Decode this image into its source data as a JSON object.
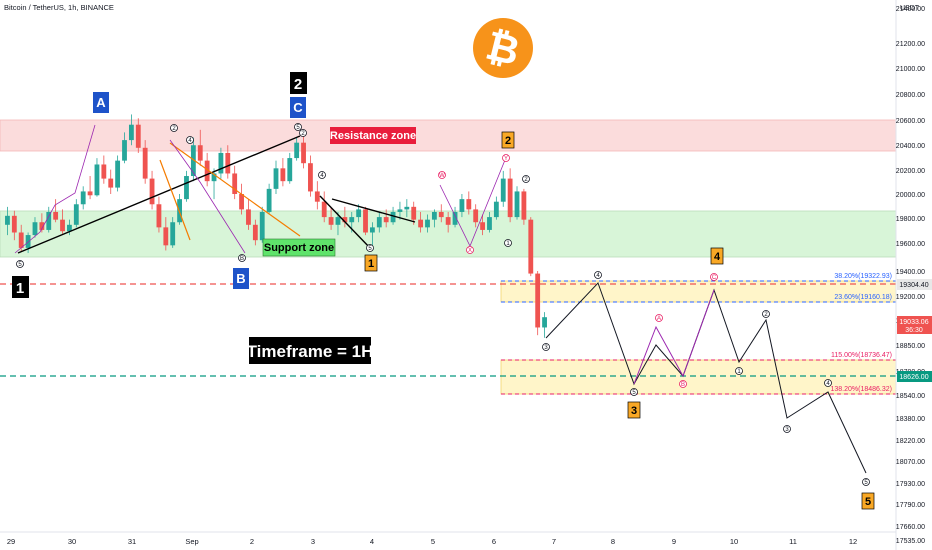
{
  "header": {
    "symbol": "Bitcoin / TetherUS, 1h, BINANCE"
  },
  "axis": {
    "unit": "USDT"
  },
  "colors": {
    "up": "#26a69a",
    "down": "#ef5350",
    "resistance_fill": "#fbdcdc",
    "support_fill": "#d8f5d8",
    "fib_fill": "#fff5c9",
    "bitcoin": "#f7931a",
    "blue_label": "#2962ff"
  },
  "chart_data": {
    "type": "candlestick",
    "title": "",
    "xlabel": "",
    "ylabel": "USDT",
    "ylim": [
      17450,
      21520
    ],
    "x_ticks": [
      "29",
      "30",
      "31",
      "Sep",
      "2",
      "3",
      "4",
      "5",
      "6",
      "7",
      "8",
      "9",
      "10",
      "11",
      "12"
    ],
    "y_ticks": [
      "21400.00",
      "21200.00",
      "21000.00",
      "20800.00",
      "20600.00",
      "20400.00",
      "20200.00",
      "20000.00",
      "19800.00",
      "19600.00",
      "19400.00",
      "19200.00",
      "19000.00",
      "18850.00",
      "18700.00",
      "18540.00",
      "18380.00",
      "18220.00",
      "18070.00",
      "17930.00",
      "17790.00",
      "17660.00",
      "17535.00"
    ],
    "price_labels": [
      {
        "value": "19304.40",
        "color": "#e8e8e8",
        "text_color": "#131722"
      },
      {
        "value": "19033.06",
        "sub": "36:30",
        "color": "#ef5350",
        "text_color": "#ffffff"
      },
      {
        "value": "18626.00",
        "color": "#089981",
        "text_color": "#ffffff"
      }
    ],
    "zones": [
      {
        "name": "Resistance zone",
        "low": 20320,
        "high": 20600
      },
      {
        "name": "Support zone",
        "low": 19520,
        "high": 19870
      }
    ],
    "fib_levels": [
      {
        "label": "38.20%(19322.93)",
        "value": 19322.93,
        "color": "#2962ff"
      },
      {
        "label": "23.60%(19160.18)",
        "value": 19160.18,
        "color": "#2962ff"
      },
      {
        "label": "115.00%(18736.47)",
        "value": 18736.47,
        "color": "#e91e63"
      },
      {
        "label": "138.20%(18486.32)",
        "value": 18486.32,
        "color": "#e91e63"
      }
    ],
    "text_labels": {
      "timeframe": "Timeframe = 1H",
      "wave_1": "1",
      "wave_2": "2",
      "wave_A": "A",
      "wave_B": "B",
      "wave_C": "C",
      "orange_1": "1",
      "orange_2": "2",
      "orange_3": "3",
      "orange_4": "4",
      "orange_5": "5"
    },
    "candles": [
      [
        19760,
        19900,
        19680,
        19830
      ],
      [
        19830,
        19870,
        19640,
        19700
      ],
      [
        19700,
        19760,
        19550,
        19580
      ],
      [
        19580,
        19700,
        19540,
        19680
      ],
      [
        19680,
        19820,
        19660,
        19780
      ],
      [
        19780,
        19850,
        19700,
        19720
      ],
      [
        19720,
        19900,
        19700,
        19860
      ],
      [
        19860,
        19960,
        19780,
        19800
      ],
      [
        19800,
        19880,
        19690,
        19710
      ],
      [
        19710,
        19800,
        19680,
        19760
      ],
      [
        19760,
        19960,
        19740,
        19920
      ],
      [
        19920,
        20060,
        19880,
        20020
      ],
      [
        20020,
        20140,
        19960,
        19990
      ],
      [
        19990,
        20280,
        19980,
        20230
      ],
      [
        20230,
        20300,
        20080,
        20120
      ],
      [
        20120,
        20190,
        20000,
        20050
      ],
      [
        20050,
        20300,
        20020,
        20260
      ],
      [
        20260,
        20480,
        20240,
        20420
      ],
      [
        20420,
        20620,
        20380,
        20540
      ],
      [
        20540,
        20590,
        20320,
        20360
      ],
      [
        20360,
        20420,
        20080,
        20120
      ],
      [
        20120,
        20180,
        19880,
        19920
      ],
      [
        19920,
        19980,
        19700,
        19740
      ],
      [
        19740,
        19820,
        19560,
        19600
      ],
      [
        19600,
        19820,
        19580,
        19780
      ],
      [
        19780,
        20000,
        19760,
        19960
      ],
      [
        19960,
        20180,
        19940,
        20140
      ],
      [
        20140,
        20440,
        20100,
        20380
      ],
      [
        20380,
        20500,
        20220,
        20260
      ],
      [
        20260,
        20320,
        20060,
        20100
      ],
      [
        20100,
        20200,
        19960,
        20160
      ],
      [
        20160,
        20360,
        20120,
        20320
      ],
      [
        20320,
        20380,
        20120,
        20160
      ],
      [
        20160,
        20220,
        19960,
        20000
      ],
      [
        20000,
        20080,
        19840,
        19880
      ],
      [
        19880,
        19960,
        19720,
        19760
      ],
      [
        19760,
        19800,
        19600,
        19640
      ],
      [
        19640,
        19900,
        19620,
        19860
      ],
      [
        19860,
        20080,
        19840,
        20040
      ],
      [
        20040,
        20260,
        20000,
        20200
      ],
      [
        20200,
        20280,
        20060,
        20100
      ],
      [
        20100,
        20320,
        20080,
        20280
      ],
      [
        20280,
        20440,
        20260,
        20400
      ],
      [
        20400,
        20460,
        20200,
        20240
      ],
      [
        20240,
        20300,
        19980,
        20020
      ],
      [
        20020,
        20100,
        19880,
        19940
      ],
      [
        19940,
        20020,
        19780,
        19820
      ],
      [
        19820,
        19900,
        19720,
        19760
      ],
      [
        19760,
        19860,
        19680,
        19820
      ],
      [
        19820,
        19900,
        19740,
        19780
      ],
      [
        19780,
        19860,
        19700,
        19820
      ],
      [
        19820,
        19920,
        19780,
        19880
      ],
      [
        19880,
        19900,
        19680,
        19700
      ],
      [
        19700,
        19780,
        19600,
        19740
      ],
      [
        19740,
        19860,
        19700,
        19820
      ],
      [
        19820,
        19880,
        19740,
        19780
      ],
      [
        19780,
        19900,
        19760,
        19860
      ],
      [
        19860,
        19940,
        19800,
        19880
      ],
      [
        19880,
        19960,
        19820,
        19900
      ],
      [
        19900,
        19940,
        19760,
        19800
      ],
      [
        19800,
        19860,
        19700,
        19740
      ],
      [
        19740,
        19840,
        19700,
        19800
      ],
      [
        19800,
        19880,
        19740,
        19860
      ],
      [
        19860,
        19920,
        19780,
        19820
      ],
      [
        19820,
        19860,
        19700,
        19760
      ],
      [
        19760,
        19900,
        19740,
        19860
      ],
      [
        19860,
        20000,
        19820,
        19960
      ],
      [
        19960,
        20020,
        19840,
        19880
      ],
      [
        19880,
        19920,
        19740,
        19780
      ],
      [
        19780,
        19840,
        19680,
        19720
      ],
      [
        19720,
        19860,
        19700,
        19820
      ],
      [
        19820,
        19980,
        19800,
        19940
      ],
      [
        19940,
        20180,
        19900,
        20120
      ],
      [
        20120,
        20200,
        19780,
        19820
      ],
      [
        19820,
        20060,
        19800,
        20020
      ],
      [
        20020,
        20040,
        19760,
        19800
      ],
      [
        19800,
        19820,
        19360,
        19380
      ],
      [
        19380,
        19400,
        18900,
        18960
      ],
      [
        18960,
        19080,
        18880,
        19040
      ]
    ],
    "projection_black": [
      [
        0,
        18900
      ],
      [
        1,
        19230
      ],
      [
        2,
        18560
      ],
      [
        3,
        18790
      ],
      [
        4,
        18620
      ],
      [
        5,
        19130
      ],
      [
        6,
        18760
      ]
    ],
    "projection_purple": [
      [
        0,
        18560
      ],
      [
        1,
        19000
      ],
      [
        2,
        18560
      ],
      [
        3,
        19230
      ]
    ],
    "projection_tail": [
      [
        0,
        18760
      ],
      [
        1,
        18980
      ],
      [
        2,
        18350
      ],
      [
        3,
        18480
      ],
      [
        4,
        17870
      ]
    ]
  }
}
